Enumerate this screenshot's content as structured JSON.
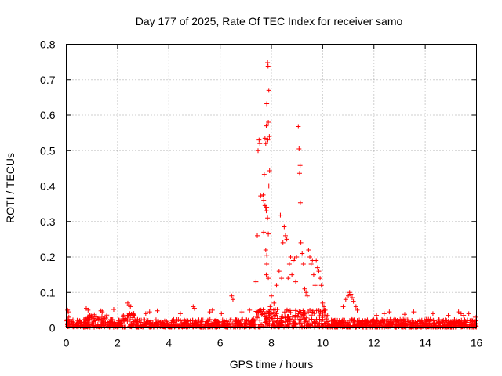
{
  "chart_data": {
    "type": "scatter",
    "title": "Day 177 of 2025, Rate Of TEC Index for receiver samo",
    "xlabel": "GPS time / hours",
    "ylabel": "ROTI / TECUs",
    "xlim": [
      0,
      16
    ],
    "ylim": [
      0,
      0.8
    ],
    "xticks": [
      "0",
      "2",
      "4",
      "6",
      "8",
      "10",
      "12",
      "14",
      "16"
    ],
    "yticks": [
      "0",
      "0.1",
      "0.2",
      "0.3",
      "0.4",
      "0.5",
      "0.6",
      "0.7",
      "0.8"
    ],
    "grid": true,
    "marker": "plus",
    "color": "#ff0000",
    "series": [
      {
        "x": [
          7.85,
          7.87,
          7.9,
          7.82,
          7.88,
          7.92,
          7.8,
          7.86,
          7.75,
          7.78,
          7.93,
          7.72,
          7.52,
          7.55,
          7.48,
          7.58,
          7.45,
          7.68,
          7.7,
          7.75,
          7.78,
          7.8,
          7.82,
          7.85,
          7.9,
          7.7,
          7.88,
          8.35,
          7.82,
          7.78,
          8.5,
          8.55,
          8.6,
          8.45,
          7.4,
          7.82,
          7.8,
          7.88,
          9.05,
          9.08,
          9.12,
          9.1,
          9.13,
          9.15,
          8.98,
          8.9,
          8.85,
          9.2,
          9.25,
          9.45,
          9.5,
          9.55,
          9.6,
          9.75,
          9.8,
          9.85,
          9.9,
          9.95,
          8.7,
          8.75,
          8.65,
          8.8,
          8.95,
          9.3,
          9.35,
          9.4,
          9.65,
          9.7,
          8.2,
          8.3,
          8.4,
          8.0,
          8.1,
          7.95,
          10.0,
          10.05,
          10.1,
          10.9,
          11.0,
          11.05,
          11.1,
          11.15,
          11.2,
          11.3,
          11.35,
          10.8,
          12.6,
          6.45,
          6.5,
          2.4,
          2.45,
          2.5,
          4.95,
          5.0,
          15.3,
          15.4,
          15.5,
          0.05,
          0.08,
          0.1,
          0.78,
          0.85,
          1.35,
          1.4,
          1.85,
          3.1,
          3.25,
          3.55,
          4.45,
          5.6,
          5.7,
          6.05,
          6.85,
          7.15,
          12.1,
          12.4,
          13.2,
          13.55,
          14.3,
          14.9,
          15.7,
          15.95
        ],
        "y": [
          0.748,
          0.738,
          0.67,
          0.632,
          0.58,
          0.54,
          0.57,
          0.53,
          0.535,
          0.52,
          0.443,
          0.433,
          0.53,
          0.52,
          0.5,
          0.372,
          0.26,
          0.375,
          0.36,
          0.345,
          0.338,
          0.33,
          0.34,
          0.31,
          0.4,
          0.27,
          0.265,
          0.318,
          0.205,
          0.22,
          0.285,
          0.26,
          0.25,
          0.24,
          0.13,
          0.18,
          0.15,
          0.14,
          0.568,
          0.505,
          0.458,
          0.436,
          0.353,
          0.24,
          0.2,
          0.195,
          0.19,
          0.21,
          0.18,
          0.22,
          0.2,
          0.18,
          0.19,
          0.19,
          0.17,
          0.16,
          0.14,
          0.12,
          0.18,
          0.2,
          0.14,
          0.15,
          0.13,
          0.11,
          0.1,
          0.09,
          0.15,
          0.12,
          0.12,
          0.16,
          0.14,
          0.09,
          0.07,
          0.06,
          0.07,
          0.06,
          0.05,
          0.08,
          0.09,
          0.1,
          0.095,
          0.085,
          0.075,
          0.06,
          0.05,
          0.06,
          0.045,
          0.09,
          0.08,
          0.07,
          0.065,
          0.06,
          0.06,
          0.055,
          0.045,
          0.04,
          0.035,
          0.05,
          0.045,
          0.03,
          0.055,
          0.05,
          0.048,
          0.045,
          0.052,
          0.04,
          0.045,
          0.048,
          0.04,
          0.045,
          0.05,
          0.04,
          0.045,
          0.05,
          0.035,
          0.04,
          0.038,
          0.045,
          0.04,
          0.035,
          0.04,
          0.03
        ]
      }
    ]
  }
}
